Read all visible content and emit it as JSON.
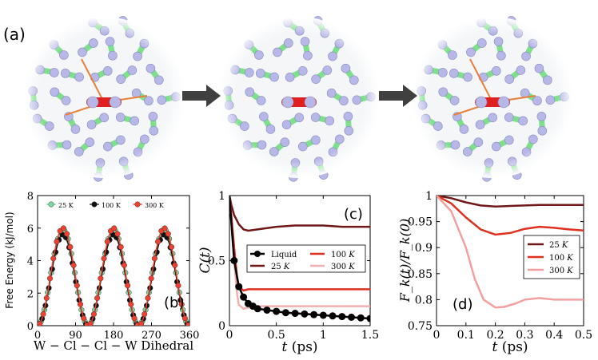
{
  "panel_labels": {
    "a": "(a)",
    "b": "(b)",
    "c": "(c)",
    "d": "(d)"
  },
  "colors": {
    "green": "#7ee08a",
    "lavender": "#b8b8e8",
    "red_mol": "#e02020",
    "bond": "#e8803a",
    "arrow": "#404040",
    "t25": "#701818",
    "t100": "#e03020",
    "t300": "#f4a0a0",
    "liquid": "#000000",
    "b_green": "#7ad9a0",
    "b_black": "#111111",
    "b_red": "#f04030"
  },
  "chart_data": [
    {
      "id": "b",
      "type": "scatter",
      "xlabel": "W − Cl − Cl − W Dihedral",
      "ylabel": "Free Energy (kJ/mol)",
      "xlim": [
        0,
        360
      ],
      "ylim": [
        0,
        8
      ],
      "xticks": [
        "0",
        "90",
        "180",
        "270",
        "360"
      ],
      "yticks": [
        "0",
        "2",
        "4",
        "6",
        "8"
      ],
      "legend": "top",
      "series": [
        {
          "name": "25 K",
          "color": "#7ad9a0",
          "period_peak": 5.9,
          "peaks_at": [
            60,
            180,
            300
          ]
        },
        {
          "name": "100 K",
          "color": "#111111",
          "period_peak": 5.6,
          "peaks_at": [
            60,
            180,
            300
          ]
        },
        {
          "name": "300 K",
          "color": "#f04030",
          "period_peak": 6.0,
          "peaks_at": [
            60,
            180,
            300
          ]
        }
      ],
      "minima_at": [
        0,
        120,
        240,
        360
      ]
    },
    {
      "id": "c",
      "type": "line",
      "ylabel": "C(t)",
      "xlabel_var": "t",
      "xlabel_unit": "(ps)",
      "xlim": [
        0,
        1.5
      ],
      "ylim": [
        0,
        1
      ],
      "xticks": [
        "0",
        "0.5",
        "1",
        "1.5"
      ],
      "yticks": [
        "0",
        "0.5",
        "1"
      ],
      "legend": "center-right",
      "series": [
        {
          "name": "Liquid",
          "color": "#000000",
          "markers": true,
          "x": [
            0,
            0.02,
            0.05,
            0.1,
            0.15,
            0.2,
            0.25,
            0.3,
            0.4,
            0.5,
            0.6,
            0.7,
            0.8,
            0.9,
            1.0,
            1.1,
            1.2,
            1.3,
            1.4,
            1.5
          ],
          "y": [
            1,
            0.8,
            0.5,
            0.3,
            0.22,
            0.17,
            0.15,
            0.13,
            0.12,
            0.11,
            0.1,
            0.095,
            0.09,
            0.085,
            0.08,
            0.075,
            0.07,
            0.065,
            0.06,
            0.055
          ]
        },
        {
          "name": "25 K",
          "color": "#701818",
          "markers": false,
          "x": [
            0,
            0.02,
            0.05,
            0.1,
            0.15,
            0.2,
            0.3,
            0.5,
            0.7,
            1.0,
            1.2,
            1.5
          ],
          "y": [
            1,
            0.93,
            0.85,
            0.78,
            0.74,
            0.73,
            0.74,
            0.76,
            0.77,
            0.77,
            0.76,
            0.76
          ]
        },
        {
          "name": "100 K",
          "color": "#e03020",
          "markers": false,
          "x": [
            0,
            0.02,
            0.05,
            0.08,
            0.1,
            0.15,
            0.2,
            0.3,
            0.5,
            0.8,
            1.0,
            1.2,
            1.5
          ],
          "y": [
            1,
            0.85,
            0.6,
            0.38,
            0.3,
            0.27,
            0.28,
            0.28,
            0.28,
            0.28,
            0.28,
            0.28,
            0.28
          ]
        },
        {
          "name": "300 K",
          "color": "#f4b0b0",
          "markers": false,
          "x": [
            0,
            0.02,
            0.05,
            0.08,
            0.1,
            0.15,
            0.2,
            0.3,
            0.5,
            0.8,
            1.0,
            1.2,
            1.5
          ],
          "y": [
            1,
            0.8,
            0.5,
            0.25,
            0.16,
            0.13,
            0.14,
            0.15,
            0.15,
            0.15,
            0.15,
            0.15,
            0.15
          ]
        }
      ]
    },
    {
      "id": "d",
      "type": "line",
      "ylabel": "F_k(t)/F_k(0)",
      "xlabel_var": "t",
      "xlabel_unit": "(ps)",
      "xlim": [
        0,
        0.5
      ],
      "ylim": [
        0.75,
        1
      ],
      "xticks": [
        "0",
        "0.1",
        "0.2",
        "0.3",
        "0.4",
        "0.5"
      ],
      "yticks": [
        "0.75",
        "0.8",
        "0.85",
        "0.9",
        "0.95",
        "1"
      ],
      "legend": "center-right",
      "series": [
        {
          "name": "25 K",
          "color": "#701818",
          "x": [
            0,
            0.05,
            0.1,
            0.15,
            0.2,
            0.25,
            0.3,
            0.35,
            0.4,
            0.45,
            0.5
          ],
          "y": [
            1,
            0.995,
            0.987,
            0.981,
            0.979,
            0.98,
            0.981,
            0.982,
            0.982,
            0.982,
            0.982
          ]
        },
        {
          "name": "100 K",
          "color": "#e03020",
          "x": [
            0,
            0.05,
            0.1,
            0.15,
            0.2,
            0.25,
            0.3,
            0.35,
            0.4,
            0.45,
            0.5
          ],
          "y": [
            1,
            0.985,
            0.958,
            0.935,
            0.925,
            0.928,
            0.936,
            0.94,
            0.938,
            0.935,
            0.933
          ]
        },
        {
          "name": "300 K",
          "color": "#f4a0a0",
          "x": [
            0,
            0.05,
            0.1,
            0.13,
            0.16,
            0.2,
            0.23,
            0.27,
            0.3,
            0.35,
            0.4,
            0.45,
            0.5
          ],
          "y": [
            1,
            0.97,
            0.9,
            0.84,
            0.8,
            0.785,
            0.786,
            0.793,
            0.8,
            0.803,
            0.8,
            0.8,
            0.8
          ]
        }
      ]
    }
  ]
}
